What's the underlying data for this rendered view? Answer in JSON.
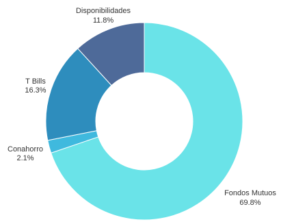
{
  "chart_data": {
    "type": "pie",
    "style": "donut",
    "labels": [
      "Fondos Mutuos",
      "Conahorro",
      "T Bills",
      "Disponibilidades"
    ],
    "values": [
      69.8,
      2.1,
      16.3,
      11.8
    ],
    "value_labels": [
      "69.8%",
      "2.1%",
      "16.3%",
      "11.8%"
    ],
    "colors": [
      "#6ae3e8",
      "#3fb9de",
      "#2e8dbd",
      "#4e6a99"
    ],
    "start_angle": "12 o'clock",
    "direction": "clockwise",
    "legend": "none"
  }
}
